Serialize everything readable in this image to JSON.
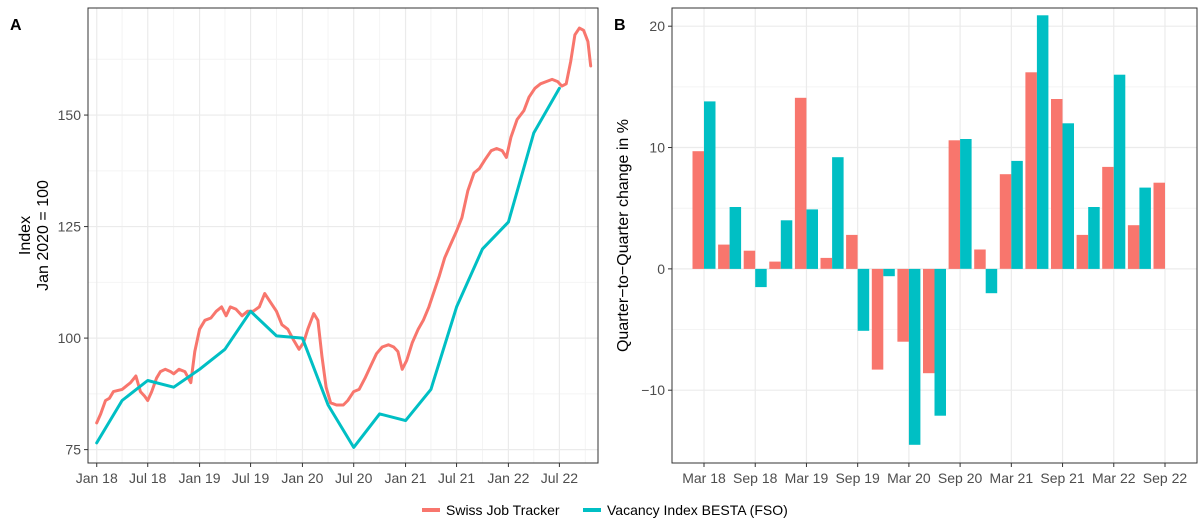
{
  "colors": {
    "tracker": "#F8766D",
    "besta": "#00BFC4",
    "grid_major": "#ebebeb",
    "grid_minor": "#f4f4f4",
    "panel_border": "#333333",
    "tick_text": "#4d4d4d"
  },
  "legend": {
    "items": [
      "Swiss Job Tracker",
      "Vacancy Index BESTA  (FSO)"
    ]
  },
  "chart_data": [
    {
      "panel": "A",
      "type": "line",
      "xlabel": "",
      "ylabel_lines": [
        "Index",
        "Jan 2020 = 100"
      ],
      "x_ticks": [
        "Jan 18",
        "Jul 18",
        "Jan 19",
        "Jul 19",
        "Jan 20",
        "Jul 20",
        "Jan 21",
        "Jul 21",
        "Jan 22",
        "Jul 22"
      ],
      "xlim": [
        "2017-12-01",
        "2022-11-15"
      ],
      "ylim": [
        72,
        174
      ],
      "y_ticks": [
        75,
        100,
        125,
        150
      ],
      "grid": true,
      "series": [
        {
          "name": "Swiss Job Tracker",
          "color": "#F8766D",
          "points": [
            [
              "2018-01-01",
              81
            ],
            [
              "2018-01-15",
              83
            ],
            [
              "2018-02-01",
              86
            ],
            [
              "2018-02-15",
              86.5
            ],
            [
              "2018-03-01",
              88
            ],
            [
              "2018-04-01",
              88.5
            ],
            [
              "2018-05-01",
              90
            ],
            [
              "2018-05-20",
              91.5
            ],
            [
              "2018-06-05",
              88
            ],
            [
              "2018-06-20",
              87
            ],
            [
              "2018-07-01",
              86
            ],
            [
              "2018-07-15",
              88
            ],
            [
              "2018-08-01",
              91
            ],
            [
              "2018-08-15",
              92.5
            ],
            [
              "2018-09-01",
              93
            ],
            [
              "2018-09-20",
              92.5
            ],
            [
              "2018-10-01",
              92
            ],
            [
              "2018-10-20",
              93
            ],
            [
              "2018-11-10",
              92.5
            ],
            [
              "2018-12-01",
              90
            ],
            [
              "2018-12-15",
              97
            ],
            [
              "2019-01-01",
              102
            ],
            [
              "2019-01-20",
              104
            ],
            [
              "2019-02-10",
              104.5
            ],
            [
              "2019-03-01",
              106
            ],
            [
              "2019-03-20",
              107
            ],
            [
              "2019-04-05",
              105
            ],
            [
              "2019-04-20",
              107
            ],
            [
              "2019-05-10",
              106.5
            ],
            [
              "2019-06-01",
              105
            ],
            [
              "2019-06-20",
              106
            ],
            [
              "2019-07-10",
              106
            ],
            [
              "2019-08-01",
              107
            ],
            [
              "2019-08-20",
              110
            ],
            [
              "2019-09-10",
              108
            ],
            [
              "2019-10-01",
              106
            ],
            [
              "2019-10-20",
              103
            ],
            [
              "2019-11-10",
              102
            ],
            [
              "2019-12-01",
              99.5
            ],
            [
              "2019-12-20",
              97.5
            ],
            [
              "2020-01-05",
              99
            ],
            [
              "2020-01-20",
              102
            ],
            [
              "2020-02-10",
              105.5
            ],
            [
              "2020-02-25",
              104
            ],
            [
              "2020-03-10",
              96
            ],
            [
              "2020-03-25",
              89
            ],
            [
              "2020-04-10",
              85.5
            ],
            [
              "2020-05-01",
              85
            ],
            [
              "2020-05-25",
              85
            ],
            [
              "2020-06-10",
              86
            ],
            [
              "2020-07-01",
              88
            ],
            [
              "2020-07-20",
              88.5
            ],
            [
              "2020-08-10",
              91
            ],
            [
              "2020-09-01",
              94
            ],
            [
              "2020-09-20",
              96.5
            ],
            [
              "2020-10-10",
              98
            ],
            [
              "2020-11-01",
              98.5
            ],
            [
              "2020-11-20",
              98
            ],
            [
              "2020-12-05",
              97
            ],
            [
              "2020-12-20",
              93
            ],
            [
              "2021-01-05",
              95
            ],
            [
              "2021-01-25",
              99
            ],
            [
              "2021-02-15",
              102
            ],
            [
              "2021-03-05",
              104
            ],
            [
              "2021-03-25",
              107
            ],
            [
              "2021-04-15",
              111
            ],
            [
              "2021-05-01",
              114
            ],
            [
              "2021-05-20",
              118
            ],
            [
              "2021-06-10",
              121
            ],
            [
              "2021-07-01",
              124
            ],
            [
              "2021-07-20",
              127
            ],
            [
              "2021-08-10",
              133
            ],
            [
              "2021-09-01",
              137
            ],
            [
              "2021-09-20",
              138
            ],
            [
              "2021-10-10",
              140
            ],
            [
              "2021-11-01",
              142
            ],
            [
              "2021-11-20",
              142.5
            ],
            [
              "2021-12-10",
              142
            ],
            [
              "2021-12-25",
              140.5
            ],
            [
              "2022-01-10",
              145
            ],
            [
              "2022-02-01",
              149
            ],
            [
              "2022-02-25",
              151
            ],
            [
              "2022-03-15",
              154
            ],
            [
              "2022-04-05",
              156
            ],
            [
              "2022-04-25",
              157
            ],
            [
              "2022-05-15",
              157.5
            ],
            [
              "2022-06-05",
              158
            ],
            [
              "2022-06-25",
              157.5
            ],
            [
              "2022-07-10",
              156.5
            ],
            [
              "2022-07-25",
              157
            ],
            [
              "2022-08-10",
              162
            ],
            [
              "2022-08-25",
              168
            ],
            [
              "2022-09-10",
              169.5
            ],
            [
              "2022-09-25",
              169
            ],
            [
              "2022-10-10",
              166.5
            ],
            [
              "2022-10-20",
              161
            ]
          ]
        },
        {
          "name": "Vacancy Index BESTA  (FSO)",
          "color": "#00BFC4",
          "points": [
            [
              "2018-01-01",
              76.5
            ],
            [
              "2018-04-01",
              86
            ],
            [
              "2018-07-01",
              90.5
            ],
            [
              "2018-10-01",
              89
            ],
            [
              "2019-01-01",
              93
            ],
            [
              "2019-04-01",
              97.5
            ],
            [
              "2019-07-01",
              106
            ],
            [
              "2019-10-01",
              100.5
            ],
            [
              "2020-01-01",
              100
            ],
            [
              "2020-04-01",
              85
            ],
            [
              "2020-07-01",
              75.5
            ],
            [
              "2020-10-01",
              83
            ],
            [
              "2021-01-01",
              81.5
            ],
            [
              "2021-04-01",
              88.5
            ],
            [
              "2021-07-01",
              107
            ],
            [
              "2021-10-01",
              120
            ],
            [
              "2022-01-01",
              126
            ],
            [
              "2022-04-01",
              146
            ],
            [
              "2022-07-01",
              156
            ]
          ]
        }
      ]
    },
    {
      "panel": "B",
      "type": "bar",
      "xlabel": "",
      "ylabel": "Quarter−to−Quarter change in %",
      "categories": [
        "Mar 18",
        "Jun 18",
        "Sep 18",
        "Dec 18",
        "Mar 19",
        "Jun 19",
        "Sep 19",
        "Dec 19",
        "Mar 20",
        "Jun 20",
        "Sep 20",
        "Dec 20",
        "Mar 21",
        "Jun 21",
        "Sep 21",
        "Dec 21",
        "Mar 22",
        "Jun 22",
        "Sep 22"
      ],
      "x_tick_labels": [
        "Mar 18",
        "Sep 18",
        "Mar 19",
        "Sep 19",
        "Mar 20",
        "Sep 20",
        "Mar 21",
        "Sep 21",
        "Mar 22",
        "Sep 22"
      ],
      "ylim": [
        -16,
        21.5
      ],
      "y_ticks": [
        -10,
        0,
        10,
        20
      ],
      "grid": true,
      "series": [
        {
          "name": "Swiss Job Tracker",
          "color": "#F8766D",
          "values": [
            9.7,
            2.0,
            1.5,
            0.6,
            14.1,
            0.9,
            2.8,
            -8.3,
            -6.0,
            -8.6,
            10.6,
            1.6,
            7.8,
            16.2,
            14.0,
            2.8,
            8.4,
            3.6,
            7.1
          ]
        },
        {
          "name": "Vacancy Index BESTA  (FSO)",
          "color": "#00BFC4",
          "values": [
            13.8,
            5.1,
            -1.5,
            4.0,
            4.9,
            9.2,
            -5.1,
            -0.6,
            -14.5,
            -12.1,
            10.7,
            -2.0,
            8.9,
            20.9,
            12.0,
            5.1,
            16.0,
            6.7,
            null
          ]
        }
      ]
    }
  ]
}
